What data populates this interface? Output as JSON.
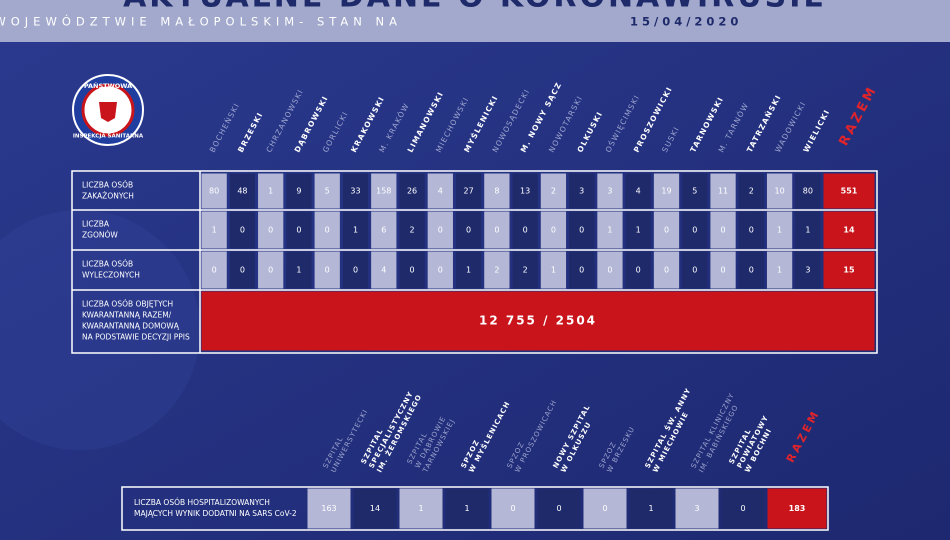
{
  "header": {
    "title": "AKTUALNE DANE O KORONAWIRUSIE",
    "subtitle": "W WOJEWÓDZTWIE MAŁOPOLSKIM- STAN NA",
    "date": "15/04/2020"
  },
  "logo": {
    "top": "PAŃSTWOWA",
    "bottom": "INSPEKCJA SANITARNA"
  },
  "table": {
    "columns": [
      "BOCHEŃSKI",
      "BRZESKI",
      "CHRZANOWSKI",
      "DĄBROWSKI",
      "GORLICKI",
      "KRAKOWSKI",
      "M. KRAKÓW",
      "LIMANOWSKI",
      "MIECHOWSKI",
      "MYŚLENICKI",
      "NOWOSĄDECKI",
      "M. NOWY SĄCZ",
      "NOWOTARSKI",
      "OLKUSKI",
      "OŚWIĘCIMSKI",
      "PROSZOWICKI",
      "SUSKI",
      "TARNOWSKI",
      "M. TARNÓW",
      "TATRZAŃSKI",
      "WADOWICKI",
      "WIELICKI"
    ],
    "total_header": "RAZEM",
    "rows": [
      {
        "label": [
          "LICZBA OSÓB",
          "ZAKAŻONYCH"
        ],
        "values": [
          80,
          48,
          1,
          9,
          5,
          33,
          158,
          26,
          4,
          27,
          8,
          13,
          2,
          3,
          3,
          4,
          19,
          5,
          11,
          2,
          10,
          80
        ],
        "total": 551
      },
      {
        "label": [
          "LICZBA",
          "ZGONÓW"
        ],
        "values": [
          1,
          0,
          0,
          0,
          0,
          1,
          6,
          2,
          0,
          0,
          0,
          0,
          0,
          0,
          1,
          1,
          0,
          0,
          0,
          0,
          1,
          1
        ],
        "total": 14
      },
      {
        "label": [
          "LICZBA OSÓB",
          "WYLECZONYCH"
        ],
        "values": [
          0,
          0,
          0,
          1,
          0,
          0,
          4,
          0,
          0,
          1,
          2,
          2,
          1,
          0,
          0,
          0,
          0,
          0,
          0,
          0,
          1,
          3
        ],
        "total": 15
      }
    ],
    "quarantine": {
      "label": [
        "LICZBA OSÓB OBJĘTYCH",
        "KWARANTANNĄ RAZEM/",
        "KWARANTANNĄ DOMOWĄ",
        "NA PODSTAWIE DECYZJI PPIS"
      ],
      "value": "12 755 / 2504"
    }
  },
  "hospitals": {
    "columns": [
      [
        "SZPITAL",
        "UNIWERSYTECKI"
      ],
      [
        "SZPITAL",
        "SPECJALISTYCZNY",
        "IM. ŻEROMSKIEGO"
      ],
      [
        "SZPITAL",
        "W DĄBROWIE",
        "TARNOWSKIEJ"
      ],
      [
        "SPZOZ",
        "W MYŚLENICACH"
      ],
      [
        "SPZOZ",
        "W PROSZOWICACH"
      ],
      [
        "NOWY SZPITAL",
        "W OLKUSZU"
      ],
      [
        "SPZOZ",
        "W BRZESKU"
      ],
      [
        "SZPITAL ŚW. ANNY",
        "W MIECHOWIE"
      ],
      [
        "SZPITAL KLINICZNY",
        "IM. BABIŃSKIEGO"
      ],
      [
        "SZPITAL",
        "POWIATOWY",
        "W BOCHNI"
      ]
    ],
    "total_header": "RAZEM",
    "row": {
      "label": [
        "LICZBA OSÓB HOSPITALIZOWANYCH",
        "MAJĄCYCH WYNIK DODATNI NA SARS CoV-2"
      ],
      "values": [
        163,
        14,
        1,
        1,
        0,
        0,
        0,
        1,
        3,
        0
      ],
      "total": 183
    }
  }
}
